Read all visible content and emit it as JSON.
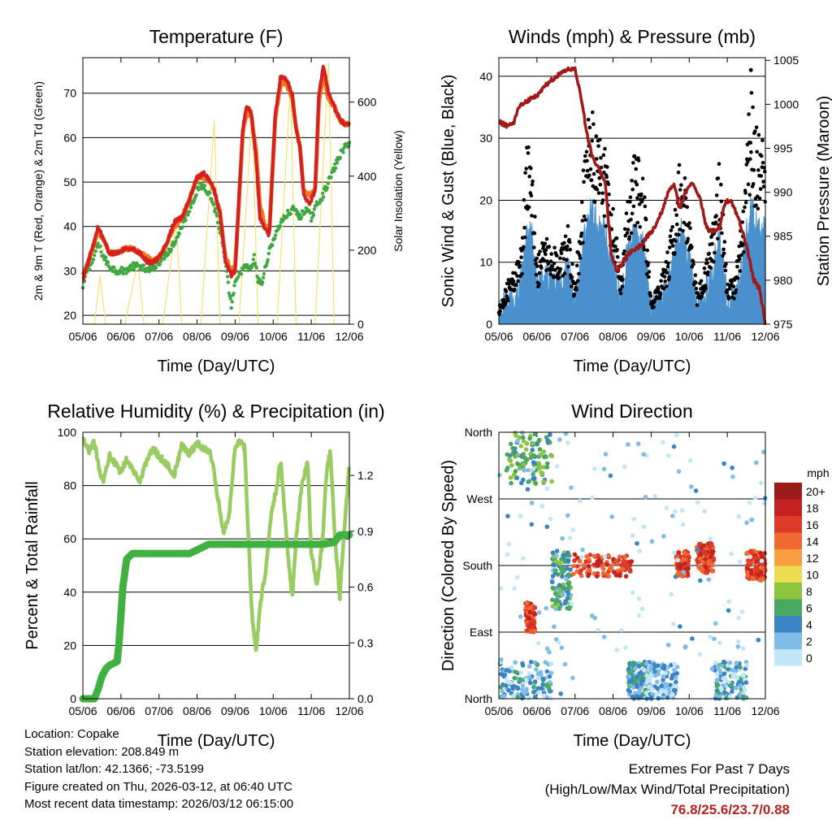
{
  "colors": {
    "t2m": "#d42020",
    "t9m": "#f07820",
    "td": "#40a840",
    "solar": "#f8e070",
    "wind": "#4a90cc",
    "gust": "#000000",
    "pressure": "#a01818",
    "rh": "#98cc60",
    "precip": "#40b040",
    "grid": "#000000"
  },
  "chart_data": [
    {
      "id": "temperature",
      "type": "line",
      "title": "Temperature (F)",
      "xlabel": "Time (Day/UTC)",
      "ylabel": "2m & 9m T (Red, Orange) & 2m Td (Green)",
      "y2label": "Solar Insolation (Yellow)",
      "x_ticks": [
        "05/06",
        "06/06",
        "07/06",
        "08/06",
        "09/06",
        "10/06",
        "11/06",
        "12/06"
      ],
      "xlim": [
        0,
        7
      ],
      "ylim": [
        18,
        78
      ],
      "y2lim": [
        0,
        720
      ],
      "y_ticks": [
        20,
        30,
        40,
        50,
        60,
        70
      ],
      "y2_ticks": [
        0,
        200,
        400,
        600
      ],
      "series": [
        {
          "name": "2m T",
          "color_key": "t2m",
          "x": [
            0,
            0.1,
            0.25,
            0.4,
            0.55,
            0.7,
            0.9,
            1.1,
            1.3,
            1.5,
            1.7,
            1.85,
            2.0,
            2.2,
            2.4,
            2.6,
            2.8,
            3.0,
            3.2,
            3.35,
            3.45,
            3.6,
            3.75,
            3.9,
            4.0,
            4.2,
            4.3,
            4.42,
            4.55,
            4.65,
            4.75,
            4.9,
            5.05,
            5.2,
            5.35,
            5.5,
            5.6,
            5.7,
            5.8,
            5.95,
            6.1,
            6.2,
            6.32,
            6.45,
            6.6,
            6.75,
            6.9,
            7.0
          ],
          "y": [
            28,
            31,
            35,
            40,
            37,
            34,
            34,
            35,
            35,
            34,
            32,
            32,
            33,
            36,
            41,
            42,
            46,
            51,
            52,
            50,
            48,
            43,
            32,
            29,
            30,
            62,
            67,
            66,
            55,
            42,
            40,
            38,
            65,
            74,
            73,
            70,
            62,
            58,
            47,
            45,
            48,
            70,
            76,
            70,
            67,
            64,
            63,
            63
          ]
        },
        {
          "name": "9m T",
          "color_key": "t9m",
          "x": [
            0,
            0.1,
            0.25,
            0.4,
            0.55,
            0.7,
            0.9,
            1.1,
            1.3,
            1.5,
            1.7,
            1.85,
            2.0,
            2.2,
            2.4,
            2.6,
            2.8,
            3.0,
            3.2,
            3.35,
            3.45,
            3.6,
            3.75,
            3.9,
            4.0,
            4.2,
            4.3,
            4.42,
            4.55,
            4.65,
            4.75,
            4.9,
            5.05,
            5.2,
            5.35,
            5.5,
            5.6,
            5.7,
            5.8,
            5.95,
            6.1,
            6.2,
            6.32,
            6.45,
            6.6,
            6.75,
            6.9,
            7.0
          ],
          "y": [
            29,
            31,
            35,
            39,
            37,
            34,
            34,
            35,
            35,
            34,
            33,
            32,
            33,
            36,
            40,
            42,
            46,
            51,
            51,
            50,
            48,
            43,
            33,
            30,
            31,
            61,
            66,
            65,
            57,
            45,
            41,
            39,
            64,
            72,
            72,
            69,
            62,
            58,
            48,
            47,
            48,
            68,
            74,
            69,
            67,
            64,
            63,
            63
          ]
        },
        {
          "name": "2m Td",
          "color_key": "td",
          "x": [
            0,
            0.1,
            0.25,
            0.4,
            0.55,
            0.7,
            0.9,
            1.1,
            1.3,
            1.5,
            1.7,
            1.9,
            2.1,
            2.3,
            2.5,
            2.7,
            2.9,
            3.05,
            3.2,
            3.35,
            3.5,
            3.65,
            3.8,
            3.9,
            4.0,
            4.15,
            4.3,
            4.4,
            4.5,
            4.6,
            4.7,
            4.85,
            5.0,
            5.2,
            5.4,
            5.55,
            5.7,
            5.85,
            6.0,
            6.15,
            6.3,
            6.45,
            6.6,
            6.75,
            6.9,
            7.0
          ],
          "y": [
            26,
            30,
            32,
            36,
            33,
            31,
            30,
            30,
            31,
            31,
            30,
            31,
            33,
            35,
            38,
            42,
            46,
            49,
            49,
            47,
            43,
            37,
            28,
            22,
            27,
            30,
            31,
            30,
            33,
            28,
            27,
            33,
            37,
            41,
            43,
            44,
            42,
            44,
            42,
            45,
            47,
            50,
            53,
            56,
            58,
            59
          ]
        },
        {
          "name": "Solar Insolation",
          "color_key": "solar",
          "axis": "y2",
          "x": [
            0,
            0.3,
            0.45,
            0.6,
            0.9,
            1.1,
            1.45,
            1.6,
            1.8,
            2.1,
            2.45,
            2.6,
            2.8,
            3.1,
            3.45,
            3.6,
            3.8,
            4.1,
            4.45,
            4.6,
            4.8,
            5.1,
            5.45,
            5.6,
            5.8,
            6.1,
            6.45,
            6.6,
            6.8,
            7.0
          ],
          "y": [
            0,
            0,
            130,
            0,
            0,
            0,
            170,
            0,
            0,
            0,
            280,
            0,
            0,
            0,
            550,
            0,
            0,
            0,
            580,
            0,
            0,
            0,
            650,
            0,
            0,
            0,
            710,
            0,
            0,
            0
          ]
        }
      ]
    },
    {
      "id": "winds",
      "type": "line",
      "title": "Winds (mph) & Pressure (mb)",
      "xlabel": "Time (Day/UTC)",
      "ylabel": "Sonic Wind & Gust (Blue, Black)",
      "y2label": "Station Pressure (Maroon)",
      "x_ticks": [
        "05/06",
        "06/06",
        "07/06",
        "08/06",
        "09/06",
        "10/06",
        "11/06",
        "12/06"
      ],
      "xlim": [
        0,
        7
      ],
      "ylim": [
        0,
        43
      ],
      "y2lim": [
        975,
        1005.3
      ],
      "y_ticks": [
        0,
        10,
        20,
        30,
        40
      ],
      "y2_ticks": [
        975,
        980,
        985,
        990,
        995,
        1000,
        1005
      ],
      "series": [
        {
          "name": "Sonic Wind",
          "color_key": "wind",
          "x": [
            0,
            0.2,
            0.4,
            0.6,
            0.75,
            0.9,
            1.0,
            1.2,
            1.4,
            1.6,
            1.8,
            2.0,
            2.2,
            2.4,
            2.6,
            2.8,
            3.0,
            3.2,
            3.4,
            3.6,
            3.8,
            4.0,
            4.2,
            4.4,
            4.6,
            4.8,
            5.0,
            5.2,
            5.4,
            5.6,
            5.8,
            6.0,
            6.2,
            6.4,
            6.6,
            6.8,
            7.0
          ],
          "y": [
            1,
            3,
            4,
            7,
            15,
            13,
            5,
            8,
            7,
            6,
            9,
            3,
            12,
            18,
            16,
            14,
            10,
            4,
            12,
            14,
            12,
            2,
            3,
            5,
            10,
            15,
            10,
            2,
            4,
            8,
            14,
            3,
            4,
            10,
            18,
            16,
            15
          ]
        },
        {
          "name": "Gust",
          "color_key": "gust",
          "x": [
            0,
            0.2,
            0.4,
            0.6,
            0.75,
            0.9,
            1.0,
            1.2,
            1.4,
            1.6,
            1.8,
            2.0,
            2.2,
            2.4,
            2.6,
            2.8,
            3.0,
            3.2,
            3.4,
            3.6,
            3.8,
            4.0,
            4.2,
            4.4,
            4.6,
            4.8,
            5.0,
            5.2,
            5.4,
            5.6,
            5.8,
            6.0,
            6.2,
            6.4,
            6.6,
            6.8,
            7.0
          ],
          "y": [
            2,
            5,
            7,
            10,
            24,
            20,
            8,
            12,
            11,
            9,
            13,
            5,
            18,
            30,
            25,
            22,
            15,
            6,
            18,
            22,
            18,
            3,
            5,
            8,
            15,
            22,
            15,
            4,
            7,
            12,
            21,
            5,
            6,
            14,
            30,
            25,
            23
          ]
        },
        {
          "name": "Station Pressure",
          "color_key": "pressure",
          "axis": "y2",
          "x": [
            0,
            0.25,
            0.4,
            0.55,
            0.8,
            1.0,
            1.2,
            1.45,
            1.6,
            1.8,
            2.0,
            2.15,
            2.3,
            2.45,
            2.6,
            2.8,
            2.95,
            3.1,
            3.25,
            3.4,
            3.55,
            3.75,
            3.9,
            4.1,
            4.3,
            4.45,
            4.6,
            4.75,
            4.9,
            5.1,
            5.3,
            5.45,
            5.6,
            5.8,
            5.95,
            6.1,
            6.3,
            6.5,
            6.7,
            6.85,
            7.0
          ],
          "y": [
            998,
            997.5,
            998,
            1000,
            1000.5,
            1001,
            1002,
            1003,
            1003.5,
            1004,
            1004,
            1001,
            997,
            994,
            993,
            991,
            983,
            981,
            982,
            983,
            983.5,
            984,
            985,
            986,
            988,
            990,
            991,
            988,
            990,
            991,
            989,
            986,
            985.5,
            986,
            989,
            989,
            987,
            984,
            980,
            979,
            975
          ]
        }
      ]
    },
    {
      "id": "humidity",
      "type": "line",
      "title": "Relative Humidity (%) & Precipitation (in)",
      "xlabel": "Time (Day/UTC)",
      "ylabel": "Percent & Total Rainfall",
      "x_ticks": [
        "05/06",
        "06/06",
        "07/06",
        "08/06",
        "09/06",
        "10/06",
        "11/06",
        "12/06"
      ],
      "xlim": [
        0,
        7
      ],
      "ylim": [
        0,
        100
      ],
      "y2lim": [
        0,
        1.432
      ],
      "y_ticks": [
        0,
        20,
        40,
        60,
        80,
        100
      ],
      "y2_ticks": [
        "0.0",
        "0.3",
        "0.6",
        "0.9",
        "1.2"
      ],
      "series": [
        {
          "name": "Relative Humidity",
          "color_key": "rh",
          "x": [
            0,
            0.15,
            0.3,
            0.45,
            0.55,
            0.7,
            0.85,
            1.0,
            1.15,
            1.3,
            1.5,
            1.7,
            1.85,
            2.0,
            2.2,
            2.4,
            2.6,
            2.8,
            3.0,
            3.15,
            3.35,
            3.55,
            3.7,
            3.85,
            4.0,
            4.15,
            4.25,
            4.35,
            4.45,
            4.55,
            4.65,
            4.8,
            4.95,
            5.1,
            5.2,
            5.35,
            5.5,
            5.6,
            5.75,
            5.9,
            6.0,
            6.15,
            6.3,
            6.4,
            6.5,
            6.62,
            6.75,
            6.85,
            7.0
          ],
          "y": [
            97,
            93,
            96,
            85,
            82,
            92,
            88,
            85,
            90,
            86,
            82,
            90,
            94,
            91,
            88,
            84,
            95,
            92,
            96,
            94,
            93,
            75,
            62,
            70,
            95,
            97,
            94,
            60,
            30,
            17,
            35,
            48,
            70,
            80,
            90,
            60,
            38,
            60,
            80,
            90,
            55,
            42,
            60,
            85,
            93,
            60,
            38,
            60,
            88
          ]
        },
        {
          "name": "Total Precipitation",
          "color_key": "precip",
          "axis": "y2",
          "x": [
            0,
            0.3,
            0.4,
            0.5,
            0.6,
            0.7,
            0.8,
            0.9,
            0.95,
            1.05,
            1.15,
            1.3,
            1.5,
            2.0,
            2.5,
            2.8,
            3.0,
            3.3,
            3.6,
            4.0,
            4.5,
            5.0,
            5.5,
            6.0,
            6.3,
            6.6,
            6.75,
            7.0
          ],
          "y": [
            0,
            0,
            0.05,
            0.12,
            0.16,
            0.18,
            0.19,
            0.2,
            0.3,
            0.6,
            0.75,
            0.78,
            0.78,
            0.78,
            0.78,
            0.78,
            0.8,
            0.83,
            0.83,
            0.83,
            0.83,
            0.83,
            0.83,
            0.83,
            0.83,
            0.84,
            0.88,
            0.88
          ]
        }
      ]
    },
    {
      "id": "direction",
      "type": "scatter",
      "title": "Wind Direction",
      "xlabel": "Time (Day/UTC)",
      "ylabel": "Direction (Colored By Speed)",
      "x_ticks": [
        "05/06",
        "06/06",
        "07/06",
        "08/06",
        "09/06",
        "10/06",
        "11/06",
        "12/06"
      ],
      "xlim": [
        0,
        7
      ],
      "ylim": [
        0,
        360
      ],
      "y_ticks": [
        {
          "label": "North",
          "value": 0
        },
        {
          "label": "East",
          "value": 90
        },
        {
          "label": "South",
          "value": 180
        },
        {
          "label": "West",
          "value": 270
        },
        {
          "label": "North",
          "value": 360
        }
      ],
      "clusters": [
        {
          "x": [
            0,
            1.4
          ],
          "y": [
            0,
            50
          ],
          "speed": 3
        },
        {
          "x": [
            0.2,
            1.4
          ],
          "y": [
            290,
            360
          ],
          "speed": 6
        },
        {
          "x": [
            0.7,
            0.95
          ],
          "y": [
            90,
            130
          ],
          "speed": 16
        },
        {
          "x": [
            1.4,
            1.9
          ],
          "y": [
            120,
            200
          ],
          "speed": 5
        },
        {
          "x": [
            1.95,
            3.5
          ],
          "y": [
            165,
            195
          ],
          "speed": 16
        },
        {
          "x": [
            3.4,
            3.9
          ],
          "y": [
            0,
            50
          ],
          "speed": 4
        },
        {
          "x": [
            3.85,
            4.7
          ],
          "y": [
            0,
            50
          ],
          "speed": 2
        },
        {
          "x": [
            4.65,
            5.0
          ],
          "y": [
            165,
            200
          ],
          "speed": 16
        },
        {
          "x": [
            5.2,
            5.65
          ],
          "y": [
            170,
            210
          ],
          "speed": 16
        },
        {
          "x": [
            5.65,
            6.5
          ],
          "y": [
            0,
            50
          ],
          "speed": 3
        },
        {
          "x": [
            6.5,
            7.0
          ],
          "y": [
            160,
            200
          ],
          "speed": 16
        },
        {
          "x": [
            0,
            7.0
          ],
          "y": [
            0,
            360
          ],
          "speed": 1
        }
      ],
      "colorbar": {
        "unit": "mph",
        "labels": [
          "20+",
          "18",
          "16",
          "14",
          "12",
          "10",
          "8",
          "6",
          "4",
          "2",
          "0"
        ],
        "colors": [
          "#9b1b1b",
          "#c42222",
          "#de3a2a",
          "#f06832",
          "#f8a040",
          "#ecdc50",
          "#8cc440",
          "#48a860",
          "#3a84c4",
          "#80bce8",
          "#c0e6f8"
        ]
      }
    }
  ],
  "info": {
    "location": "Location: Copake",
    "elevation": "Station elevation: 208.849 m",
    "latlon": "Station lat/lon: 42.1366; -73.5199",
    "created": "Figure created on Thu, 2026-03-12, at 06:40 UTC",
    "recent": "Most recent data timestamp: 2026/03/12 06:15:00"
  },
  "extremes": {
    "title": "Extremes For Past 7 Days",
    "subtitle": "(High/Low/Max Wind/Total Precipitation)",
    "values": "76.8/25.6/23.7/0.88"
  }
}
